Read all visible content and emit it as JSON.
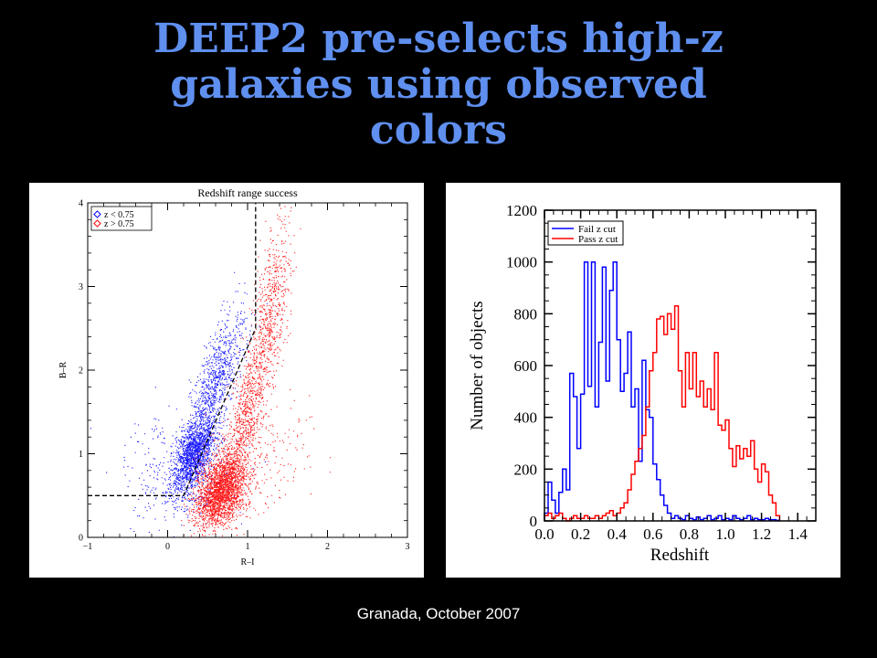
{
  "slide": {
    "title_lines": [
      "DEEP2 pre-selects high-z",
      "galaxies using observed",
      "colors"
    ],
    "footer": "Granada, October 2007"
  },
  "chart_data": [
    {
      "type": "scatter",
      "title": "Redshift range success",
      "xlabel": "R–I",
      "ylabel": "B–R",
      "xlim": [
        -1,
        3
      ],
      "ylim": [
        0,
        4
      ],
      "xticks": [
        -1,
        0,
        1,
        2,
        3
      ],
      "yticks": [
        0,
        1,
        2,
        3,
        4
      ],
      "xtick_labels": [
        "−1",
        "0",
        "1",
        "2",
        "3"
      ],
      "ytick_labels": [
        "0",
        "1",
        "2",
        "3",
        "4"
      ],
      "legend_position": "top-left",
      "series": [
        {
          "name": "z < 0.75",
          "color": "#0000ff",
          "marker": "diamond",
          "clusters": [
            {
              "n": 1500,
              "x": 0.32,
              "y": 1.0,
              "sx": 0.13,
              "sy": 0.22,
              "rho": 0.5
            },
            {
              "n": 900,
              "x": 0.6,
              "y": 1.85,
              "sx": 0.18,
              "sy": 0.42,
              "rho": 0.75
            },
            {
              "n": 250,
              "x": 0.25,
              "y": 0.65,
              "sx": 0.3,
              "sy": 0.25,
              "rho": 0.2
            },
            {
              "n": 120,
              "x": -0.05,
              "y": 0.9,
              "sx": 0.3,
              "sy": 0.35,
              "rho": 0.0
            }
          ]
        },
        {
          "name": "z > 0.75",
          "color": "#ff0000",
          "marker": "diamond",
          "clusters": [
            {
              "n": 2200,
              "x": 0.65,
              "y": 0.55,
              "sx": 0.16,
              "sy": 0.22,
              "rho": 0.35
            },
            {
              "n": 900,
              "x": 1.0,
              "y": 1.55,
              "sx": 0.18,
              "sy": 0.55,
              "rho": 0.8
            },
            {
              "n": 500,
              "x": 1.3,
              "y": 2.8,
              "sx": 0.12,
              "sy": 0.5,
              "rho": 0.5
            },
            {
              "n": 250,
              "x": 1.05,
              "y": 0.9,
              "sx": 0.35,
              "sy": 0.35,
              "rho": 0.3
            }
          ]
        }
      ],
      "cut_line": [
        [
          -1,
          0.5
        ],
        [
          0.2,
          0.5
        ],
        [
          1.1,
          2.5
        ],
        [
          1.1,
          4.0
        ]
      ],
      "vertical_guide_x": 1.1
    },
    {
      "type": "line",
      "subtype": "step-histogram",
      "xlabel": "Redshift",
      "ylabel": "Number  of objects",
      "xlim": [
        0.0,
        1.5
      ],
      "ylim": [
        0,
        1200
      ],
      "bin_width": 0.02,
      "x_start": 0.0,
      "xticks": [
        0.0,
        0.2,
        0.4,
        0.6,
        0.8,
        1.0,
        1.2,
        1.4
      ],
      "yticks": [
        0,
        200,
        400,
        600,
        800,
        1000,
        1200
      ],
      "xtick_labels": [
        "0.0",
        "0.2",
        "0.4",
        "0.6",
        "0.8",
        "1.0",
        "1.2",
        "1.4"
      ],
      "ytick_labels": [
        "0",
        "200",
        "400",
        "600",
        "800",
        "1000",
        "1200"
      ],
      "legend_position": "top-left",
      "series": [
        {
          "name": "Fail z cut",
          "color": "#0000ff",
          "values": [
            30,
            150,
            80,
            30,
            110,
            200,
            120,
            570,
            480,
            280,
            490,
            1000,
            520,
            1000,
            440,
            690,
            980,
            540,
            890,
            1000,
            700,
            500,
            570,
            730,
            440,
            510,
            230,
            620,
            430,
            400,
            220,
            160,
            100,
            60,
            30,
            10,
            20,
            10,
            5,
            20,
            10,
            5,
            15,
            5,
            10,
            20,
            5,
            10,
            20,
            5,
            10,
            5,
            20,
            10,
            5,
            10,
            20,
            5,
            10,
            5,
            5,
            10,
            5,
            5,
            2
          ]
        },
        {
          "name": "Pass z cut",
          "color": "#ff0000",
          "values": [
            20,
            30,
            10,
            20,
            30,
            10,
            0,
            10,
            20,
            10,
            10,
            20,
            10,
            10,
            20,
            10,
            20,
            30,
            40,
            20,
            30,
            50,
            70,
            120,
            180,
            230,
            280,
            330,
            440,
            580,
            650,
            780,
            790,
            720,
            800,
            740,
            830,
            580,
            440,
            650,
            510,
            650,
            480,
            540,
            440,
            510,
            430,
            650,
            370,
            350,
            390,
            280,
            210,
            290,
            240,
            280,
            250,
            310,
            200,
            150,
            220,
            190,
            100,
            70,
            20
          ]
        }
      ]
    }
  ]
}
